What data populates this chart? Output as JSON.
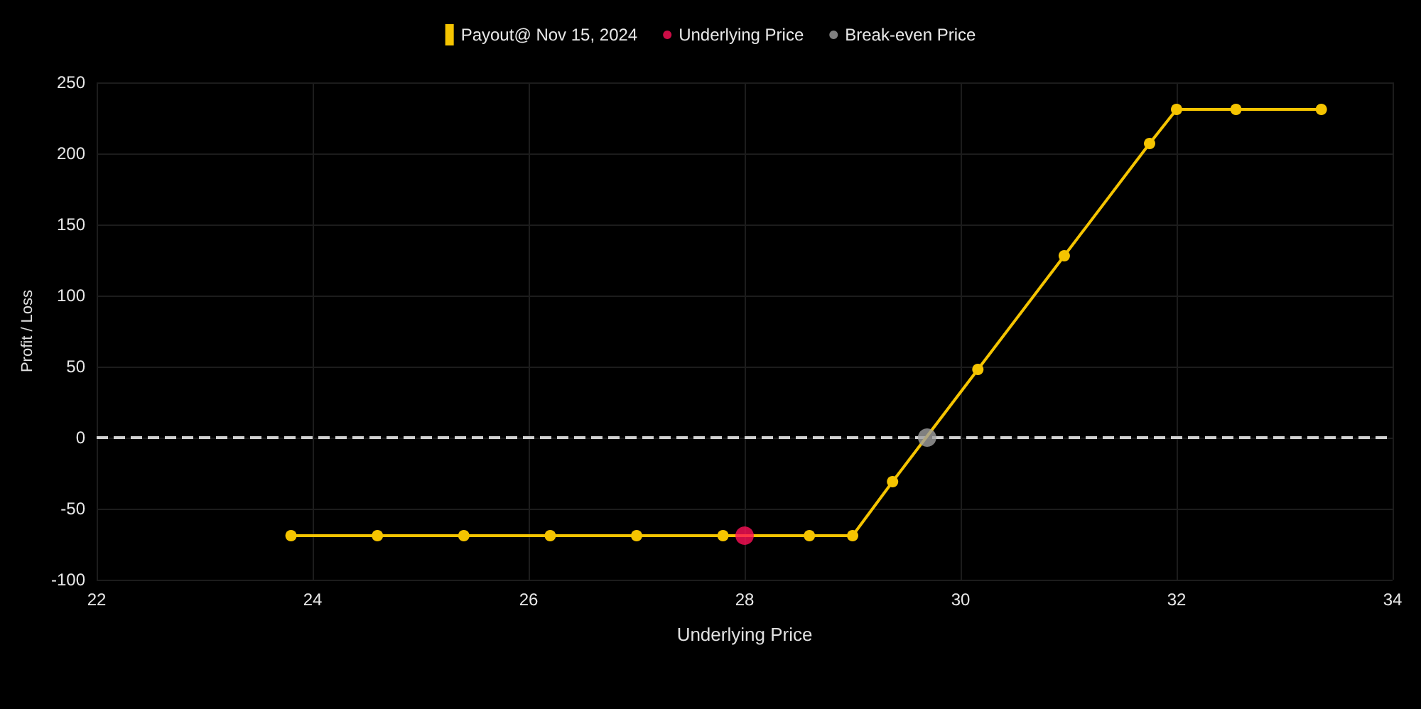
{
  "chart_data": {
    "type": "line",
    "xlabel": "Underlying Price",
    "ylabel": "Profit / Loss",
    "xlim": [
      22,
      34
    ],
    "xticks": [
      22,
      24,
      26,
      28,
      30,
      32,
      34
    ],
    "ylim": [
      -100,
      250
    ],
    "yticks": [
      -100,
      -50,
      0,
      50,
      100,
      150,
      200,
      250
    ],
    "grid": true,
    "legend": "top",
    "marker": "circle",
    "line_style": "solid",
    "ref_lines": [
      {
        "axis": "y",
        "value": 0,
        "color": "#d0d0d0",
        "line_style": "dashed"
      }
    ],
    "series": [
      {
        "name": "Payout@ Nov 15, 2024",
        "color": "#f5c400",
        "x": [
          23.8,
          24.6,
          25.4,
          26.2,
          27.0,
          27.8,
          28.6,
          29.0,
          29.37,
          30.16,
          30.96,
          31.75,
          32.0,
          32.55,
          33.34
        ],
        "values": [
          -69,
          -69,
          -69,
          -69,
          -69,
          -69,
          -69,
          -69,
          -31,
          48,
          128,
          207,
          231,
          231,
          231
        ]
      },
      {
        "type": "scatter",
        "name": "Underlying Price",
        "color": "#ff1058",
        "x": [
          28.0
        ],
        "values": [
          -69
        ]
      },
      {
        "type": "scatter",
        "name": "Break-even Price",
        "color": "#a0a0a0",
        "x": [
          29.69
        ],
        "values": [
          0
        ]
      }
    ]
  }
}
